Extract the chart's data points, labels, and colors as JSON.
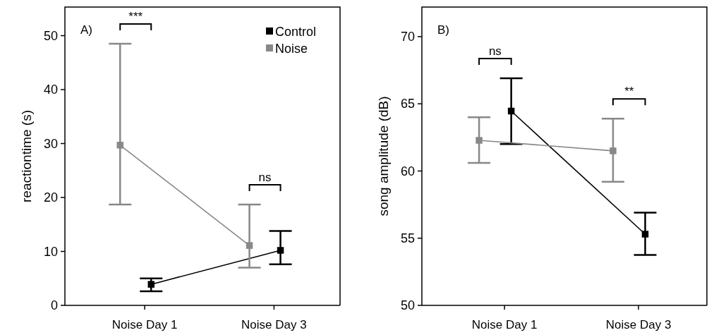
{
  "chart_data": [
    {
      "type": "line",
      "ylabel": "reactiontime (s)",
      "categories": [
        "Noise Day 1",
        "Noise Day 3"
      ],
      "ylim": [
        0,
        55.3
      ],
      "yticks": [
        0,
        10,
        20,
        30,
        40,
        50
      ],
      "legend": "top right",
      "marker": "square",
      "grid": false,
      "series": [
        {
          "name": "Control",
          "color": "#000000",
          "values": [
            3.9,
            10.2
          ],
          "errors": [
            [
              2.6,
              5.0
            ],
            [
              7.6,
              13.8
            ]
          ]
        },
        {
          "name": "Noise",
          "color": "#888888",
          "values": [
            29.7,
            11.1
          ],
          "errors": [
            [
              18.7,
              48.5
            ],
            [
              7.0,
              18.7
            ]
          ]
        }
      ],
      "annotations": [
        "A)",
        "***",
        "ns"
      ]
    },
    {
      "type": "line",
      "ylabel": "song amplitude (dB)",
      "categories": [
        "Noise Day 1",
        "Noise Day 3"
      ],
      "ylim": [
        50,
        72.2
      ],
      "yticks": [
        50,
        55,
        60,
        65,
        70
      ],
      "legend": false,
      "marker": "square",
      "grid": false,
      "series": [
        {
          "color": "#000000",
          "values": [
            64.46,
            55.3
          ],
          "errors": [
            [
              62.0,
              66.9
            ],
            [
              53.75,
              56.9
            ]
          ]
        },
        {
          "color": "#888888",
          "values": [
            62.28,
            61.5
          ],
          "errors": [
            [
              60.6,
              64.0
            ],
            [
              59.2,
              63.9
            ]
          ]
        }
      ],
      "annotations": [
        "B)",
        "ns",
        "**"
      ]
    }
  ]
}
